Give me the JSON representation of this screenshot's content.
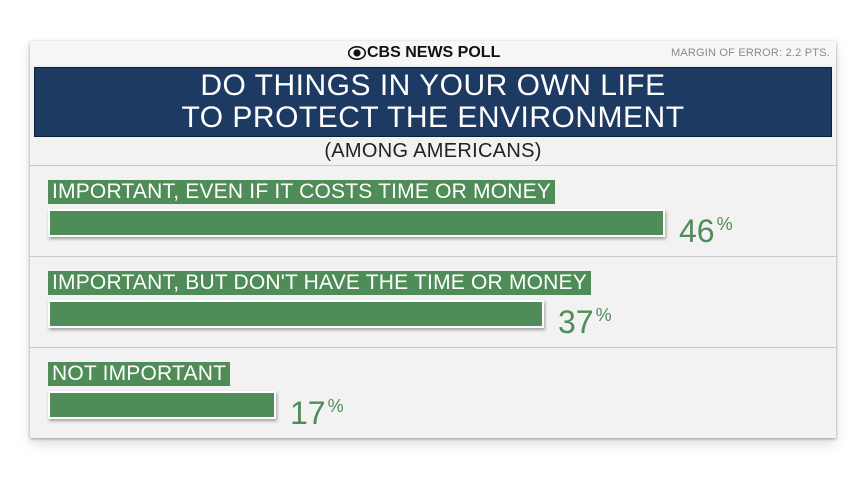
{
  "brand": "CBS NEWS POLL",
  "margin_of_error": "MARGIN OF ERROR: 2.2 PTS.",
  "title_lines": [
    "DO THINGS IN YOUR OWN LIFE",
    "TO PROTECT THE ENVIRONMENT"
  ],
  "subtitle": "(AMONG AMERICANS)",
  "colors": {
    "bar": "#4f8c58",
    "header": "#1d3a63"
  },
  "chart_data": {
    "type": "bar",
    "orientation": "horizontal",
    "title": "DO THINGS IN YOUR OWN LIFE TO PROTECT THE ENVIRONMENT",
    "subtitle": "(AMONG AMERICANS)",
    "categories": [
      "IMPORTANT, EVEN IF IT COSTS TIME OR MONEY",
      "IMPORTANT, BUT DON'T HAVE THE TIME OR MONEY",
      "NOT IMPORTANT"
    ],
    "values": [
      46,
      37,
      17
    ],
    "value_labels": [
      "46",
      "37",
      "17"
    ],
    "unit": "%",
    "xlim": [
      0,
      100
    ],
    "grid": false
  }
}
